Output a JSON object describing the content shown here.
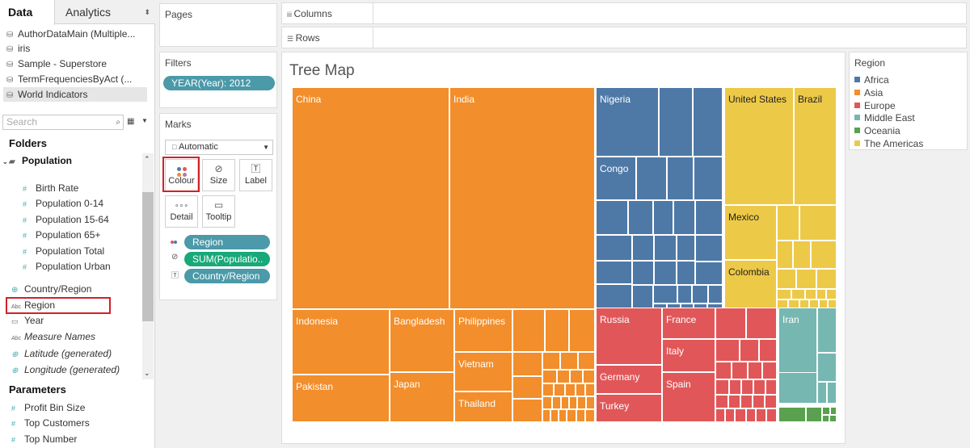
{
  "colors": {
    "africa": "#4e79a7",
    "asia": "#f28e2b",
    "europe": "#e15759",
    "middle_east": "#76b7b2",
    "oceania": "#59a14f",
    "americas": "#edc948",
    "pill_teal": "#4b99a9",
    "pill_green": "#18a87a",
    "highlight": "#d32027"
  },
  "tabs": {
    "data": "Data",
    "analytics": "Analytics"
  },
  "datasources": [
    {
      "label": "AuthorDataMain (Multiple...",
      "icon": "database-icon"
    },
    {
      "label": "iris",
      "icon": "database-icon"
    },
    {
      "label": "Sample - Superstore",
      "icon": "database-icon"
    },
    {
      "label": "TermFrequenciesByAct (...",
      "icon": "database-icon"
    },
    {
      "label": "World Indicators",
      "icon": "database-icon",
      "selected": true
    }
  ],
  "search": {
    "placeholder": "Search"
  },
  "folders": {
    "title": "Folders",
    "group": "Population",
    "group_items": [
      "Birth Rate",
      "Population 0-14",
      "Population 15-64",
      "Population 65+",
      "Population Total",
      "Population Urban"
    ],
    "items": [
      {
        "label": "Country/Region",
        "icon": "globe-icon"
      },
      {
        "label": "Region",
        "icon": "abc-icon"
      },
      {
        "label": "Year",
        "icon": "calendar-icon"
      },
      {
        "label": "Measure Names",
        "icon": "abc-icon"
      },
      {
        "label": "Latitude (generated)",
        "icon": "globe-icon"
      },
      {
        "label": "Longitude (generated)",
        "icon": "globe-icon"
      }
    ]
  },
  "parameters": {
    "title": "Parameters",
    "items": [
      "Profit Bin Size",
      "Top Customers",
      "Top Number"
    ]
  },
  "pages": {
    "title": "Pages"
  },
  "filters": {
    "title": "Filters",
    "pill": "YEAR(Year): 2012"
  },
  "marks": {
    "title": "Marks",
    "type": "Automatic",
    "buttons": {
      "colour": "Colour",
      "size": "Size",
      "label": "Label",
      "detail": "Detail",
      "tooltip": "Tooltip"
    },
    "pills": [
      {
        "label": "Region",
        "icon": "colour-icon"
      },
      {
        "label": "SUM(Populatio..",
        "icon": "size-icon"
      },
      {
        "label": "Country/Region",
        "icon": "label-icon"
      }
    ]
  },
  "shelves": {
    "columns": "Columns",
    "rows": "Rows"
  },
  "viz": {
    "title": "Tree Map",
    "labels": {
      "china": "China",
      "india": "India",
      "nigeria": "Nigeria",
      "congo": "Congo",
      "united_states": "United States",
      "brazil": "Brazil",
      "mexico": "Mexico",
      "colombia": "Colombia",
      "indonesia": "Indonesia",
      "bangladesh": "Bangladesh",
      "philippines": "Philippines",
      "pakistan": "Pakistan",
      "japan": "Japan",
      "vietnam": "Vietnam",
      "thailand": "Thailand",
      "russia": "Russia",
      "france": "France",
      "germany": "Germany",
      "italy": "Italy",
      "turkey": "Turkey",
      "spain": "Spain",
      "iran": "Iran"
    }
  },
  "legend": {
    "title": "Region",
    "items": [
      "Africa",
      "Asia",
      "Europe",
      "Middle East",
      "Oceania",
      "The Americas"
    ]
  }
}
